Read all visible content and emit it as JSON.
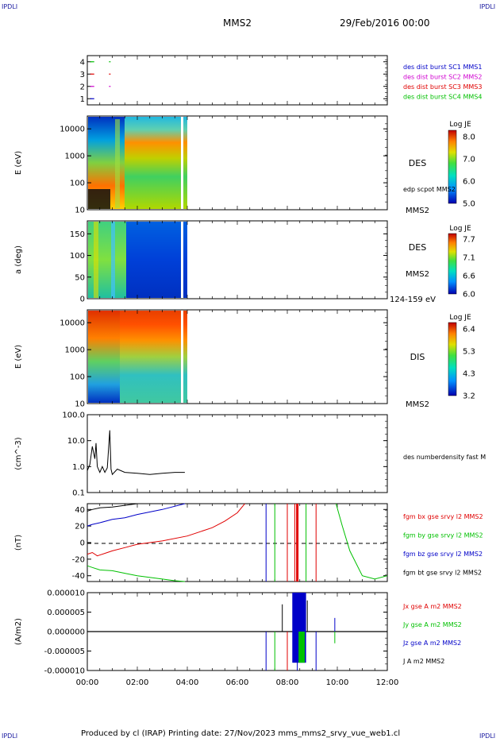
{
  "header": {
    "corner_tl": "IPDLI",
    "corner_tr": "IPDLI",
    "corner_bl": "IPDLI",
    "corner_br": "IPDLI",
    "spacecraft": "MMS2",
    "datetime": "29/Feb/2016 00:00"
  },
  "footer": {
    "text": "Produced by cl (IRAP)   Printing date: 27/Nov/2023   mms_mms2_srvy_vue_web1.cl"
  },
  "colors": {
    "blue": "#0000c8",
    "magenta": "#d000d0",
    "red": "#e00000",
    "green": "#00c000",
    "black": "#000000"
  },
  "x_axis": {
    "tick_labels": [
      "00:00",
      "02:00",
      "04:00",
      "06:00",
      "08:00",
      "10:00",
      "12:00"
    ],
    "range_hours": [
      0,
      12
    ]
  },
  "panels": {
    "burst": {
      "tick_labels": [
        "4",
        "3",
        "2",
        "1"
      ],
      "legend": [
        {
          "text": "des dist burst SC1 MMS1",
          "color": "#0000c8"
        },
        {
          "text": "des dist burst SC2 MMS2",
          "color": "#d000d0"
        },
        {
          "text": "des dist burst SC3 MMS3",
          "color": "#e00000"
        },
        {
          "text": "des dist burst SC4 MMS4",
          "color": "#00c000"
        }
      ]
    },
    "des_energy": {
      "ylabel": "E (eV)",
      "tick_labels": [
        "10000",
        "1000",
        "100",
        "10"
      ],
      "species": "DES",
      "overlay_label": "edp scpot MMS2",
      "spacecraft": "MMS2",
      "colorbar": {
        "title": "Log JE",
        "ticks": [
          "8.0",
          "7.0",
          "6.0",
          "5.0"
        ]
      }
    },
    "des_pitch": {
      "ylabel": "a (deg)",
      "tick_labels": [
        "150",
        "100",
        "50",
        "0"
      ],
      "species": "DES",
      "spacecraft": "MMS2",
      "energy_band": "124-159 eV",
      "colorbar": {
        "title": "Log JE",
        "ticks": [
          "7.7",
          "7.1",
          "6.6",
          "6.0"
        ]
      }
    },
    "dis_energy": {
      "ylabel": "E (eV)",
      "tick_labels": [
        "10000",
        "1000",
        "100",
        "10"
      ],
      "species": "DIS",
      "spacecraft": "MMS2",
      "colorbar": {
        "title": "Log JE",
        "ticks": [
          "6.4",
          "5.3",
          "4.3",
          "3.2"
        ]
      }
    },
    "density": {
      "ylabel": "(cm^-3)",
      "tick_labels": [
        "100.0",
        "10.0",
        "1.0",
        "0.1"
      ],
      "legend": "des numberdensity fast M"
    },
    "bfield": {
      "ylabel": "(nT)",
      "tick_labels": [
        "40",
        "20",
        "0",
        "-20",
        "-40"
      ],
      "legend": [
        {
          "text": "fgm bx gse srvy l2 MMS2",
          "color": "#e00000"
        },
        {
          "text": "fgm by gse srvy l2 MMS2",
          "color": "#00c000"
        },
        {
          "text": "fgm bz gse srvy l2 MMS2",
          "color": "#0000c8"
        },
        {
          "text": "fgm bt gse srvy l2 MMS2",
          "color": "#000000"
        }
      ]
    },
    "current": {
      "ylabel": "(A/m2)",
      "tick_labels": [
        "0.000010",
        "0.000005",
        "0.000000",
        "-0.000005",
        "-0.000010"
      ],
      "legend": [
        {
          "text": "Jx gse A m2 MMS2",
          "color": "#e00000"
        },
        {
          "text": "Jy gse A m2 MMS2",
          "color": "#00c000"
        },
        {
          "text": "Jz gse A m2 MMS2",
          "color": "#0000c8"
        },
        {
          "text": "J A m2 MMS2",
          "color": "#000000"
        }
      ]
    }
  },
  "chart_data": [
    {
      "type": "scatter",
      "name": "burst intervals",
      "ylim": [
        0.5,
        4.5
      ],
      "series": [
        {
          "name": "des dist burst SC1 MMS1",
          "sc": 1,
          "x": [
            0.15
          ]
        },
        {
          "name": "des dist burst SC2 MMS2",
          "sc": 2,
          "x": [
            0.15,
            0.9
          ]
        },
        {
          "name": "des dist burst SC3 MMS3",
          "sc": 3,
          "x": [
            0.15,
            0.9
          ]
        },
        {
          "name": "des dist burst SC4 MMS4",
          "sc": 4,
          "x": [
            0.15,
            0.9
          ]
        }
      ]
    },
    {
      "type": "heatmap",
      "name": "DES energy spectrogram",
      "scale": "log",
      "ylim": [
        10,
        30000
      ],
      "zlim": [
        5.0,
        8.0
      ],
      "data_end_hour": 3.95,
      "gap_hours": [
        3.72,
        3.82
      ]
    },
    {
      "type": "heatmap",
      "name": "DES pitch angle",
      "ylim": [
        0,
        180
      ],
      "zlim": [
        6.0,
        7.7
      ],
      "data_end_hour": 3.95,
      "gap_hours": [
        3.72,
        3.82
      ]
    },
    {
      "type": "heatmap",
      "name": "DIS energy spectrogram",
      "scale": "log",
      "ylim": [
        10,
        30000
      ],
      "zlim": [
        3.2,
        6.4
      ],
      "data_end_hour": 3.95,
      "gap_hours": [
        3.72,
        3.82
      ]
    },
    {
      "type": "line",
      "name": "density",
      "scale": "log",
      "ylim": [
        0.1,
        100
      ],
      "x": [
        0.0,
        0.1,
        0.2,
        0.3,
        0.35,
        0.4,
        0.5,
        0.6,
        0.7,
        0.8,
        0.85,
        0.9,
        0.95,
        1.0,
        1.2,
        1.5,
        2.0,
        2.5,
        3.0,
        3.5,
        3.9
      ],
      "y": [
        0.7,
        1.2,
        6.0,
        2.0,
        8.0,
        1.0,
        0.6,
        1.0,
        0.6,
        0.9,
        5.0,
        25.0,
        0.8,
        0.5,
        0.8,
        0.6,
        0.55,
        0.5,
        0.55,
        0.6,
        0.6
      ]
    },
    {
      "type": "line",
      "name": "magnetic field",
      "ylim": [
        -47,
        47
      ],
      "series": [
        {
          "name": "fgm bx gse srvy l2 MMS2",
          "x": [
            0.0,
            0.2,
            0.4,
            0.8,
            1.0,
            1.5,
            2.0,
            3.0,
            4.0,
            5.0,
            5.5,
            6.0,
            6.3
          ],
          "y": [
            -14,
            -12,
            -16,
            -12,
            -10,
            -6,
            -2,
            2,
            8,
            18,
            26,
            36,
            47
          ]
        },
        {
          "name": "fgm by gse srvy l2 MMS2",
          "x": [
            0.0,
            0.2,
            0.5,
            1.0,
            1.5,
            2.0,
            3.0,
            3.5,
            3.9
          ],
          "y": [
            -28,
            -30,
            -33,
            -34,
            -37,
            -40,
            -44,
            -46,
            -47
          ]
        },
        {
          "name": "fgm by gse srvy l2 MMS2",
          "x": [
            9.95,
            10.2,
            10.5,
            11.0,
            11.5,
            12.0
          ],
          "y": [
            47,
            20,
            -10,
            -40,
            -44,
            -40
          ]
        },
        {
          "name": "fgm bz gse srvy l2 MMS2",
          "x": [
            0.0,
            0.2,
            0.5,
            1.0,
            1.5,
            2.0,
            3.0,
            3.9
          ],
          "y": [
            20,
            22,
            24,
            28,
            30,
            34,
            40,
            47
          ]
        },
        {
          "name": "fgm bt gse srvy l2 MMS2",
          "x": [
            0.0,
            0.2,
            0.5,
            1.0,
            1.5,
            2.0
          ],
          "y": [
            38,
            40,
            42,
            43,
            45,
            47
          ]
        }
      ],
      "vertical_lines": [
        {
          "x": 7.15,
          "color": "blue"
        },
        {
          "x": 7.5,
          "color": "green"
        },
        {
          "x": 8.0,
          "color": "red"
        },
        {
          "x": 8.3,
          "color": "red"
        },
        {
          "x": 8.4,
          "color": "red"
        },
        {
          "x": 8.75,
          "color": "green"
        },
        {
          "x": 9.15,
          "color": "red"
        }
      ]
    },
    {
      "type": "line",
      "name": "current density",
      "ylim": [
        -1e-05,
        1e-05
      ],
      "spikes": [
        {
          "x": 7.15,
          "y": -1e-05,
          "color": "blue"
        },
        {
          "x": 7.5,
          "y": -1e-05,
          "color": "green"
        },
        {
          "x": 7.8,
          "y": 7e-06,
          "color": "black"
        },
        {
          "x": 8.0,
          "y": -1e-05,
          "color": "red"
        },
        {
          "x": 8.3,
          "y": 1e-05,
          "color": "blue"
        },
        {
          "x": 8.4,
          "y": -1e-05,
          "color": "blue"
        },
        {
          "x": 8.6,
          "y": 1e-05,
          "color": "blue"
        },
        {
          "x": 8.8,
          "y": 8e-06,
          "color": "black"
        },
        {
          "x": 9.15,
          "y": -1e-05,
          "color": "blue"
        },
        {
          "x": 9.9,
          "y": 3.5e-06,
          "color": "blue"
        },
        {
          "x": 9.9,
          "y": -3e-06,
          "color": "green"
        }
      ]
    }
  ]
}
